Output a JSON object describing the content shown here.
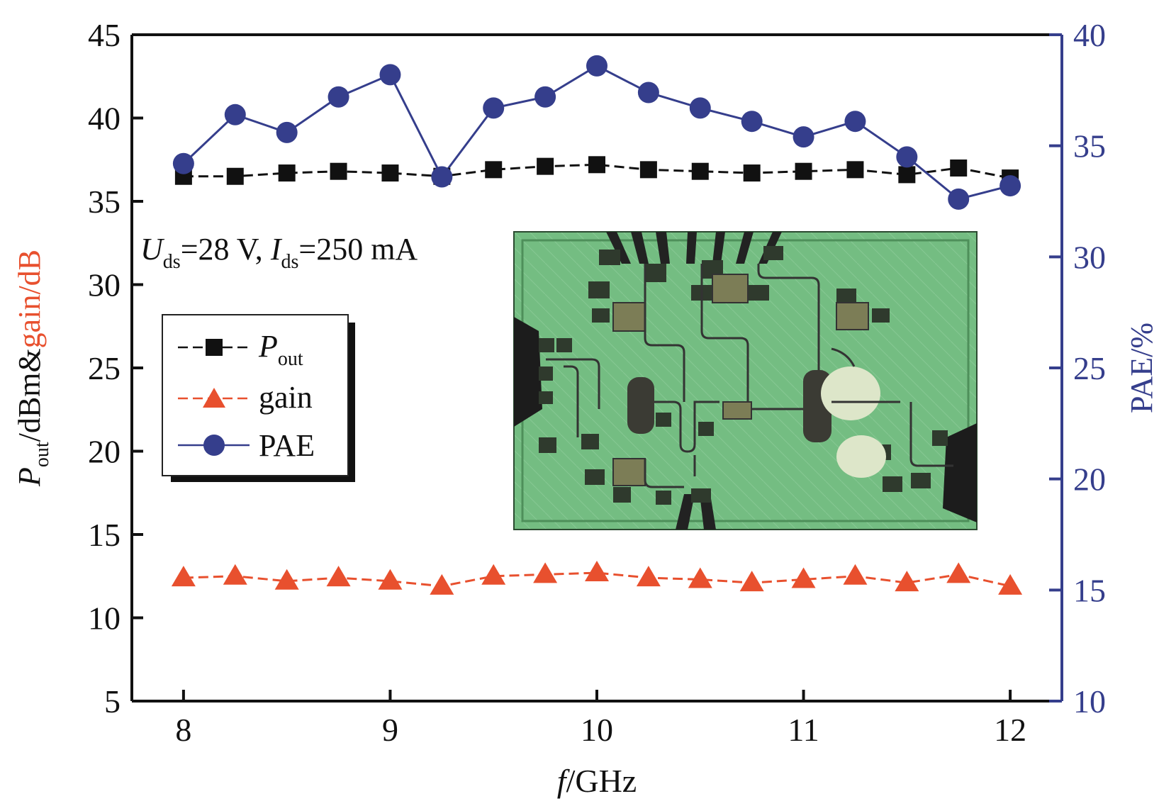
{
  "chart_data": {
    "type": "line",
    "x": [
      8,
      8.25,
      8.5,
      8.75,
      9,
      9.25,
      9.5,
      9.75,
      10,
      10.25,
      10.5,
      10.75,
      11,
      11.25,
      11.5,
      11.75,
      12
    ],
    "xlim": [
      7.75,
      12.25
    ],
    "xticks": [
      8,
      9,
      10,
      11,
      12
    ],
    "xlabel": {
      "italic": "f",
      "rest": "/GHz"
    },
    "ylim_left": [
      5,
      45
    ],
    "yticks_left": [
      5,
      10,
      15,
      20,
      25,
      30,
      35,
      40,
      45
    ],
    "ylim_right": [
      10,
      40
    ],
    "yticks_right": [
      10,
      15,
      20,
      25,
      30,
      35,
      40
    ],
    "ylabel_left": {
      "p": "P",
      "sub": "out",
      "unit": "/dBm&",
      "gain": "gain/dB"
    },
    "ylabel_right": "PAE/%",
    "series": [
      {
        "name": "Pout",
        "axis": "left",
        "marker": "square",
        "line": "dashed",
        "color": "#111111",
        "values": [
          36.5,
          36.5,
          36.7,
          36.8,
          36.7,
          36.5,
          36.9,
          37.1,
          37.2,
          36.9,
          36.8,
          36.7,
          36.8,
          36.9,
          36.6,
          37.0,
          36.4
        ]
      },
      {
        "name": "gain",
        "axis": "left",
        "marker": "triangle",
        "line": "dashed",
        "color": "#e8502e",
        "values": [
          12.4,
          12.5,
          12.2,
          12.4,
          12.2,
          11.9,
          12.5,
          12.6,
          12.7,
          12.4,
          12.3,
          12.1,
          12.3,
          12.5,
          12.1,
          12.6,
          11.9
        ]
      },
      {
        "name": "PAE",
        "axis": "right",
        "marker": "circle",
        "line": "solid",
        "color": "#353e8c",
        "values": [
          34.2,
          36.4,
          35.6,
          37.2,
          38.2,
          33.6,
          36.7,
          37.2,
          38.6,
          37.4,
          36.7,
          36.1,
          35.4,
          36.1,
          34.5,
          32.6,
          33.2
        ]
      }
    ],
    "legend": {
      "position": "upper-left",
      "entries": [
        {
          "main": "P",
          "sub": "out"
        },
        {
          "main": "gain",
          "sub": ""
        },
        {
          "main": "PAE",
          "sub": ""
        }
      ]
    },
    "annotation": {
      "u": "U",
      "u_sub": "ds",
      "u_val": "=28 V, ",
      "i": "I",
      "i_sub": "ds",
      "i_val": "=250 mA"
    },
    "inset": "chip-micrograph",
    "colors": {
      "axis": "#111111",
      "right_axis": "#353e8c",
      "gain": "#e8502e",
      "inset_bg": "#6fb87d"
    }
  }
}
